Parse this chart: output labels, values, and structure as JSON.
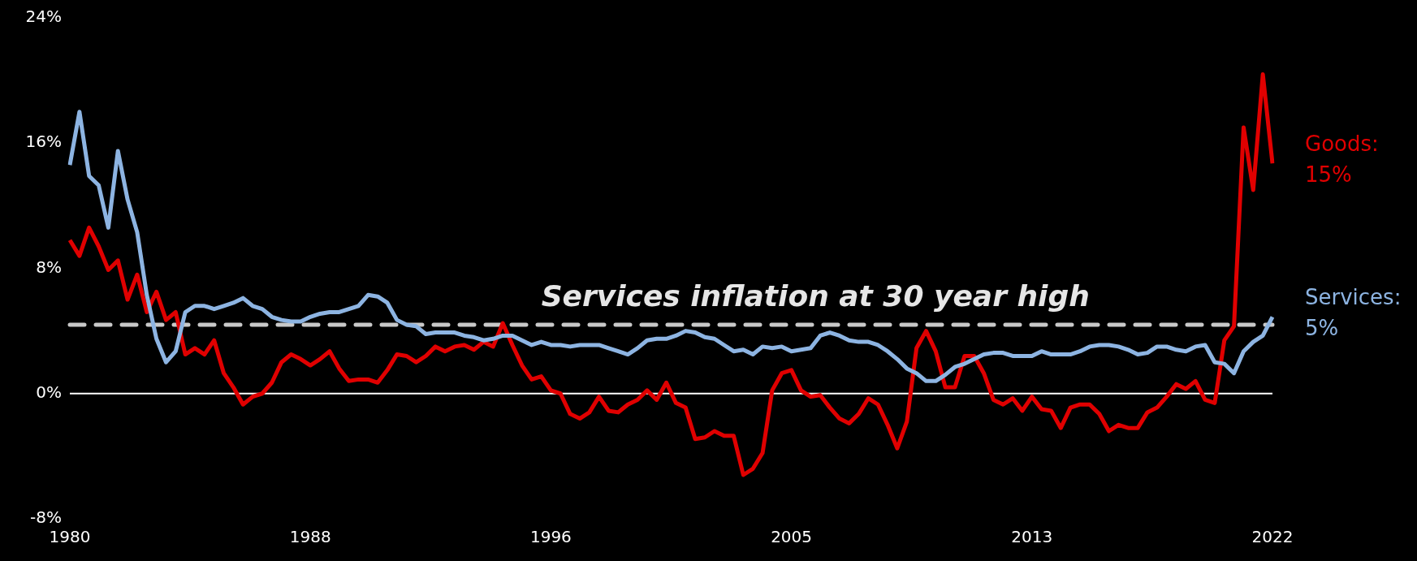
{
  "chart_data": {
    "type": "line",
    "categories": [
      "1980",
      null,
      null,
      null,
      null,
      null,
      null,
      null,
      null,
      null,
      null,
      null,
      null,
      null,
      null,
      null,
      null,
      null,
      null,
      null,
      null,
      null,
      null,
      null,
      null,
      "1988",
      null,
      null,
      null,
      null,
      null,
      null,
      null,
      null,
      null,
      null,
      null,
      null,
      null,
      null,
      null,
      null,
      null,
      null,
      null,
      null,
      null,
      null,
      null,
      null,
      "1996",
      null,
      null,
      null,
      null,
      null,
      null,
      null,
      null,
      null,
      null,
      null,
      null,
      null,
      null,
      null,
      null,
      null,
      null,
      null,
      null,
      null,
      null,
      null,
      null,
      "2005",
      null,
      null,
      null,
      null,
      null,
      null,
      null,
      null,
      null,
      null,
      null,
      null,
      null,
      null,
      null,
      null,
      null,
      null,
      null,
      null,
      null,
      null,
      null,
      null,
      "2013",
      null,
      null,
      null,
      null,
      null,
      null,
      null,
      null,
      null,
      null,
      null,
      null,
      null,
      null,
      null,
      null,
      null,
      null,
      null,
      null,
      null,
      null,
      null,
      null,
      "2022"
    ],
    "series": [
      {
        "name": "Services:",
        "color": "#8db4e2",
        "values": [
          14.6,
          18.0,
          13.9,
          13.3,
          10.6,
          15.5,
          12.4,
          10.3,
          6.3,
          3.5,
          2.0,
          2.7,
          5.2,
          5.6,
          5.6,
          5.4,
          5.6,
          5.8,
          6.1,
          5.6,
          5.4,
          4.9,
          4.7,
          4.6,
          4.6,
          4.9,
          5.1,
          5.2,
          5.2,
          5.4,
          5.6,
          6.3,
          6.2,
          5.8,
          4.7,
          4.4,
          4.3,
          3.8,
          3.9,
          3.9,
          3.9,
          3.7,
          3.6,
          3.4,
          3.5,
          3.7,
          3.7,
          3.4,
          3.1,
          3.3,
          3.1,
          3.1,
          3.0,
          3.1,
          3.1,
          3.1,
          2.9,
          2.7,
          2.5,
          2.9,
          3.4,
          3.5,
          3.5,
          3.7,
          4.0,
          3.9,
          3.6,
          3.5,
          3.1,
          2.7,
          2.8,
          2.5,
          3.0,
          2.9,
          3.0,
          2.7,
          2.8,
          2.9,
          3.7,
          3.9,
          3.7,
          3.4,
          3.3,
          3.3,
          3.1,
          2.7,
          2.2,
          1.6,
          1.3,
          0.8,
          0.8,
          1.2,
          1.7,
          1.9,
          2.2,
          2.5,
          2.6,
          2.6,
          2.4,
          2.4,
          2.4,
          2.7,
          2.5,
          2.5,
          2.5,
          2.7,
          3.0,
          3.1,
          3.1,
          3.0,
          2.8,
          2.5,
          2.6,
          3.0,
          3.0,
          2.8,
          2.7,
          3.0,
          3.1,
          2.0,
          1.9,
          1.3,
          2.7,
          3.3,
          3.7,
          4.9
        ]
      },
      {
        "name": "Goods:",
        "color": "#e00000",
        "values": [
          9.8,
          8.8,
          10.6,
          9.4,
          7.9,
          8.5,
          6.0,
          7.6,
          5.2,
          6.5,
          4.7,
          5.2,
          2.5,
          2.9,
          2.5,
          3.4,
          1.3,
          0.4,
          -0.7,
          -0.2,
          0.0,
          0.7,
          2.0,
          2.5,
          2.2,
          1.8,
          2.2,
          2.7,
          1.6,
          0.8,
          0.9,
          0.9,
          0.7,
          1.5,
          2.5,
          2.4,
          2.0,
          2.4,
          3.0,
          2.7,
          3.0,
          3.1,
          2.8,
          3.3,
          3.0,
          4.5,
          3.1,
          1.8,
          0.9,
          1.1,
          0.2,
          0.0,
          -1.3,
          -1.6,
          -1.2,
          -0.2,
          -1.1,
          -1.2,
          -0.7,
          -0.4,
          0.2,
          -0.4,
          0.7,
          -0.6,
          -0.9,
          -2.9,
          -2.8,
          -2.4,
          -2.7,
          -2.7,
          -5.2,
          -4.8,
          -3.8,
          0.2,
          1.3,
          1.5,
          0.2,
          -0.2,
          -0.1,
          -0.9,
          -1.6,
          -1.9,
          -1.3,
          -0.3,
          -0.7,
          -2.0,
          -3.5,
          -1.8,
          2.9,
          4.0,
          2.7,
          0.4,
          0.4,
          2.4,
          2.4,
          1.3,
          -0.4,
          -0.7,
          -0.3,
          -1.1,
          -0.2,
          -1.0,
          -1.1,
          -2.2,
          -0.9,
          -0.7,
          -0.7,
          -1.3,
          -2.4,
          -2.0,
          -2.2,
          -2.2,
          -1.2,
          -0.9,
          -0.2,
          0.6,
          0.3,
          0.8,
          -0.4,
          -0.6,
          3.4,
          4.3,
          17.0,
          13.0,
          20.4,
          14.7
        ]
      }
    ],
    "annotations": [
      {
        "text": "5%",
        "x": "2022",
        "y": 4.9
      },
      {
        "text": "15%",
        "x": "2022",
        "y": 14.7
      }
    ],
    "ylim": [
      -8,
      24
    ],
    "yticks": [
      {
        "value": -8,
        "label": "-8%"
      },
      {
        "value": 0,
        "label": "0%"
      },
      {
        "value": 8,
        "label": "8%"
      },
      {
        "value": 16,
        "label": "16%"
      },
      {
        "value": 24,
        "label": "24%"
      }
    ],
    "ref_lines": [
      {
        "axis": "y",
        "value": 0,
        "color": "#ffffff",
        "line_style": "solid"
      },
      {
        "axis": "y",
        "value": 4.4,
        "label": "Services inflation at 30 year high",
        "color": "#c8c8c8",
        "line_style": "dashed"
      }
    ],
    "marker": "none",
    "line_style": "solid"
  }
}
